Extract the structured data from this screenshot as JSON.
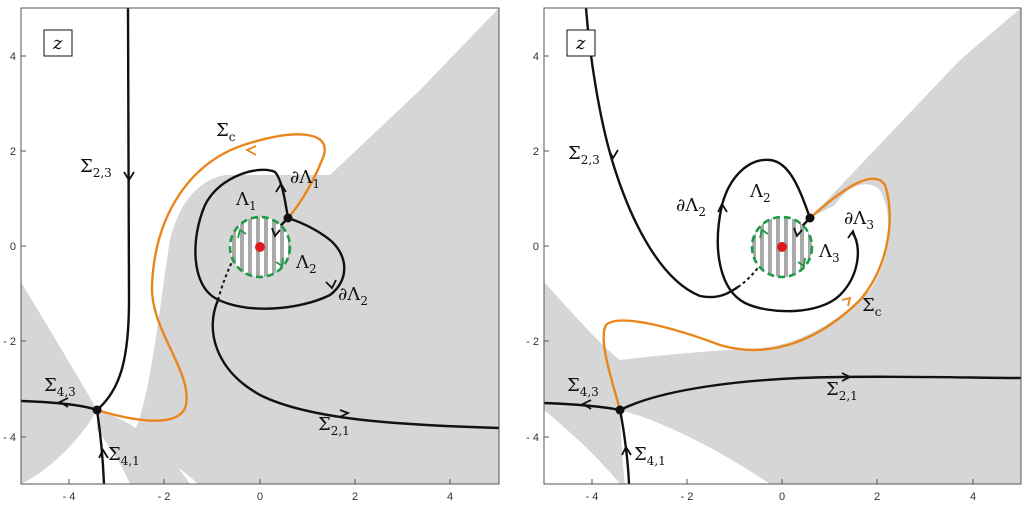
{
  "colors": {
    "shade": "#d6d6d6",
    "curve": "#111111",
    "contour": "#e8861c",
    "circle": "#1f9a45",
    "point": "#e0191e"
  },
  "panels": [
    {
      "id": "left",
      "z_label": "z",
      "xticks": [
        "- 4",
        "- 2",
        "0",
        "2",
        "4"
      ],
      "yticks": [
        "4",
        "2",
        "0",
        "- 2",
        "- 4"
      ],
      "labels": {
        "sigma_c": {
          "main": "Σ",
          "sub": "c"
        },
        "d_lambda1": {
          "main": "∂Λ",
          "sub": "1"
        },
        "lambda1": {
          "main": "Λ",
          "sub": "1"
        },
        "lambda2": {
          "main": "Λ",
          "sub": "2"
        },
        "d_lambda2": {
          "main": "∂Λ",
          "sub": "2"
        },
        "sigma23": {
          "main": "Σ",
          "sub": "2,3"
        },
        "sigma43": {
          "main": "Σ",
          "sub": "4,3"
        },
        "sigma41": {
          "main": "Σ",
          "sub": "4,1"
        },
        "sigma21": {
          "main": "Σ",
          "sub": "2,1"
        }
      }
    },
    {
      "id": "right",
      "z_label": "z",
      "xticks": [
        "- 4",
        "- 2",
        "0",
        "2",
        "4"
      ],
      "yticks": [
        "4",
        "2",
        "0",
        "- 2",
        "- 4"
      ],
      "labels": {
        "sigma23": {
          "main": "Σ",
          "sub": "2,3"
        },
        "d_lambda2": {
          "main": "∂Λ",
          "sub": "2"
        },
        "lambda2": {
          "main": "Λ",
          "sub": "2"
        },
        "d_lambda3": {
          "main": "∂Λ",
          "sub": "3"
        },
        "lambda3": {
          "main": "Λ",
          "sub": "3"
        },
        "sigma_c": {
          "main": "Σ",
          "sub": "c"
        },
        "sigma43": {
          "main": "Σ",
          "sub": "4,3"
        },
        "sigma21": {
          "main": "Σ",
          "sub": "2,1"
        },
        "sigma41": {
          "main": "Σ",
          "sub": "4,1"
        }
      }
    }
  ]
}
